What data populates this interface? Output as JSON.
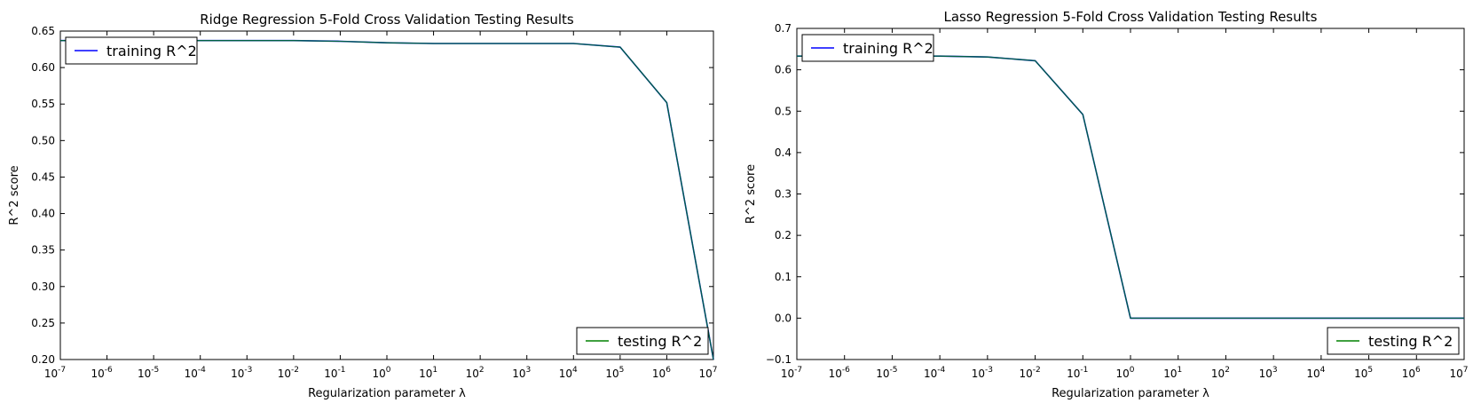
{
  "chart_data": [
    {
      "type": "line",
      "title": "Ridge Regression 5-Fold Cross Validation Testing Results",
      "xlabel": "Regularization parameter λ",
      "ylabel": "R^2 score",
      "xscale": "log",
      "xlim": [
        1e-07,
        10000000.0
      ],
      "ylim": [
        0.2,
        0.65
      ],
      "xticks": [
        {
          "base": "10",
          "exp": "-7"
        },
        {
          "base": "10",
          "exp": "-6"
        },
        {
          "base": "10",
          "exp": "-5"
        },
        {
          "base": "10",
          "exp": "-4"
        },
        {
          "base": "10",
          "exp": "-3"
        },
        {
          "base": "10",
          "exp": "-2"
        },
        {
          "base": "10",
          "exp": "-1"
        },
        {
          "base": "10",
          "exp": "0"
        },
        {
          "base": "10",
          "exp": "1"
        },
        {
          "base": "10",
          "exp": "2"
        },
        {
          "base": "10",
          "exp": "3"
        },
        {
          "base": "10",
          "exp": "4"
        },
        {
          "base": "10",
          "exp": "5"
        },
        {
          "base": "10",
          "exp": "6"
        },
        {
          "base": "10",
          "exp": "7"
        }
      ],
      "yticks": [
        "0.20",
        "0.25",
        "0.30",
        "0.35",
        "0.40",
        "0.45",
        "0.50",
        "0.55",
        "0.60",
        "0.65"
      ],
      "x": [
        1e-07,
        1e-06,
        1e-05,
        0.0001,
        0.001,
        0.01,
        0.1,
        1.0,
        10.0,
        100.0,
        1000.0,
        10000.0,
        100000.0,
        1000000.0,
        10000000.0
      ],
      "series": [
        {
          "name": "training R^2",
          "color": "#0000ff",
          "values": [
            0.637,
            0.637,
            0.637,
            0.637,
            0.637,
            0.637,
            0.636,
            0.634,
            0.633,
            0.633,
            0.633,
            0.633,
            0.628,
            0.552,
            0.2
          ]
        },
        {
          "name": "testing R^2",
          "color": "#008000",
          "values": [
            0.637,
            0.637,
            0.637,
            0.637,
            0.637,
            0.637,
            0.636,
            0.634,
            0.633,
            0.633,
            0.633,
            0.633,
            0.628,
            0.552,
            0.2
          ]
        }
      ],
      "legends": [
        {
          "series": 0,
          "placement": "top-left"
        },
        {
          "series": 1,
          "placement": "bottom-right"
        }
      ],
      "grid": false
    },
    {
      "type": "line",
      "title": "Lasso Regression 5-Fold Cross Validation Testing Results",
      "xlabel": "Regularization parameter λ",
      "ylabel": "R^2 score",
      "xscale": "log",
      "xlim": [
        1e-07,
        10000000.0
      ],
      "ylim": [
        -0.1,
        0.7
      ],
      "xticks": [
        {
          "base": "10",
          "exp": "-7"
        },
        {
          "base": "10",
          "exp": "-6"
        },
        {
          "base": "10",
          "exp": "-5"
        },
        {
          "base": "10",
          "exp": "-4"
        },
        {
          "base": "10",
          "exp": "-3"
        },
        {
          "base": "10",
          "exp": "-2"
        },
        {
          "base": "10",
          "exp": "-1"
        },
        {
          "base": "10",
          "exp": "0"
        },
        {
          "base": "10",
          "exp": "1"
        },
        {
          "base": "10",
          "exp": "2"
        },
        {
          "base": "10",
          "exp": "3"
        },
        {
          "base": "10",
          "exp": "4"
        },
        {
          "base": "10",
          "exp": "5"
        },
        {
          "base": "10",
          "exp": "6"
        },
        {
          "base": "10",
          "exp": "7"
        }
      ],
      "yticks": [
        "−0.1",
        "0.0",
        "0.1",
        "0.2",
        "0.3",
        "0.4",
        "0.5",
        "0.6",
        "0.7"
      ],
      "x": [
        1e-07,
        1e-06,
        1e-05,
        0.0001,
        0.001,
        0.01,
        0.1,
        1.0,
        10.0,
        100.0,
        1000.0,
        10000.0,
        100000.0,
        1000000.0,
        10000000.0
      ],
      "series": [
        {
          "name": "training R^2",
          "color": "#0000ff",
          "values": [
            0.633,
            0.633,
            0.633,
            0.633,
            0.631,
            0.622,
            0.492,
            0.0,
            0.0,
            0.0,
            0.0,
            0.0,
            0.0,
            0.0,
            0.0
          ]
        },
        {
          "name": "testing R^2",
          "color": "#008000",
          "values": [
            0.633,
            0.633,
            0.633,
            0.633,
            0.631,
            0.622,
            0.492,
            0.0,
            0.0,
            0.0,
            0.0,
            0.0,
            0.0,
            0.0,
            0.0
          ]
        }
      ],
      "legends": [
        {
          "series": 0,
          "placement": "top-left"
        },
        {
          "series": 1,
          "placement": "bottom-right"
        }
      ],
      "grid": false
    }
  ]
}
